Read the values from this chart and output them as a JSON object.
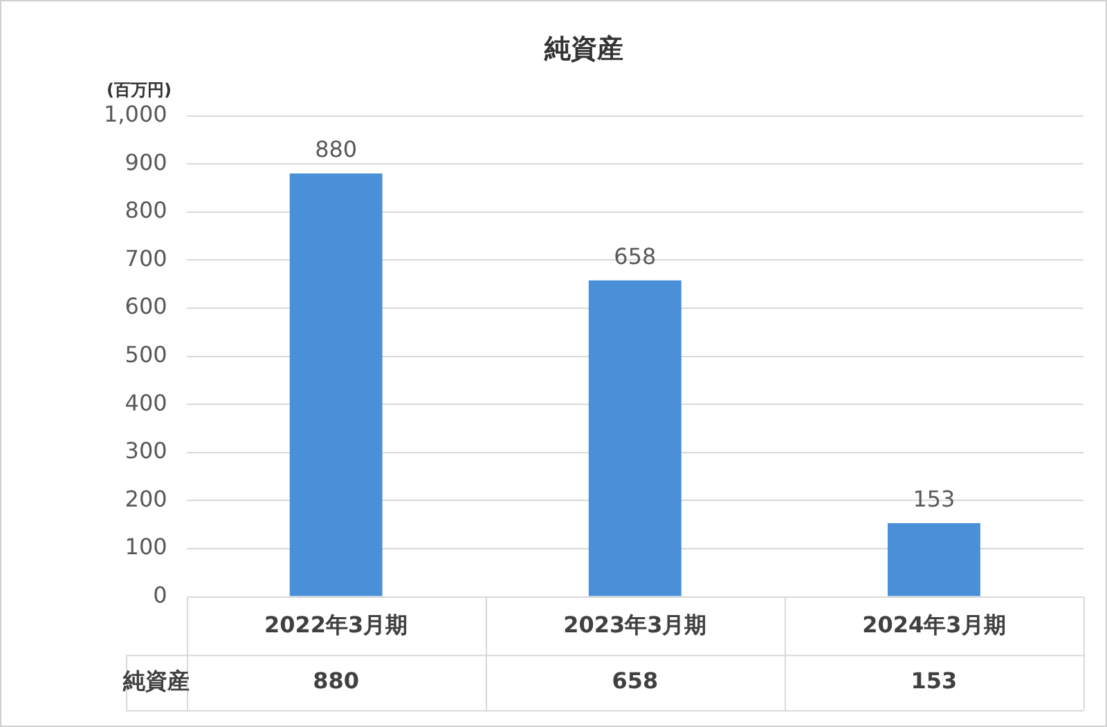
{
  "chart_data": {
    "type": "bar",
    "title": "純資産",
    "ylabel": "(百万円)",
    "categories": [
      "2022年3月期",
      "2023年3月期",
      "2024年3月期"
    ],
    "series": [
      {
        "name": "純資産",
        "color": "#4a90d9",
        "values": [
          880,
          658,
          153
        ],
        "value_labels": [
          "880",
          "658",
          "153"
        ]
      }
    ],
    "ylim": [
      0,
      1000
    ],
    "yticks": [
      0,
      100,
      200,
      300,
      400,
      500,
      600,
      700,
      800,
      900,
      {
        "value": 1000,
        "label": "1,000"
      }
    ],
    "annotations": [
      "880",
      "658",
      "153"
    ],
    "grid": "y",
    "data_labels": true
  }
}
